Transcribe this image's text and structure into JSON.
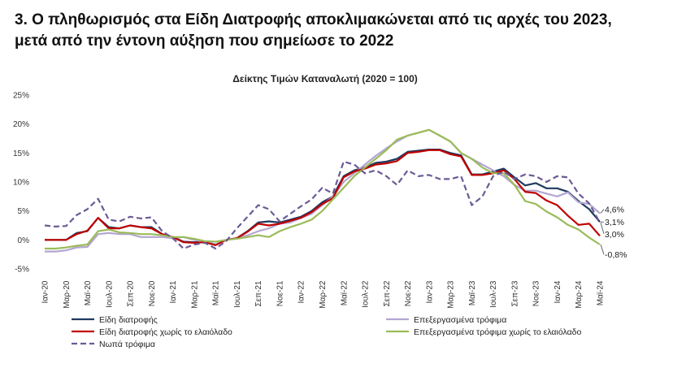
{
  "chart_data": {
    "type": "line",
    "title": "3. Ο πληθωρισμός στα Είδη Διατροφής αποκλιμακώνεται από τις αρχές του 2023,",
    "title_line2": "μετά από την έντονη αύξηση που σημείωσε το 2022",
    "subtitle": "Δείκτης Τιμών Καταναλωτή (2020 = 100)",
    "categories": [
      "Ιαν-20",
      null,
      "Μαρ-20",
      null,
      "Μαϊ-20",
      null,
      "Ιουλ-20",
      null,
      "Σεπ-20",
      null,
      "Νοε-20",
      null,
      "Ιαν-21",
      null,
      "Μαρ-21",
      null,
      "Μαϊ-21",
      null,
      "Ιουλ-21",
      null,
      "Σεπ-21",
      null,
      "Νοε-21",
      null,
      "Ιαν-22",
      null,
      "Μαρ-22",
      null,
      "Μαϊ-22",
      null,
      "Ιουλ-22",
      null,
      "Σεπ-22",
      null,
      "Νοε-22",
      null,
      "Ιαν-23",
      null,
      "Μαρ-23",
      null,
      "Μαϊ-23",
      null,
      "Ιουλ-23",
      null,
      "Σεπ-23",
      null,
      "Νοε-23",
      null,
      "Ιαν-24",
      null,
      "Μαρ-24",
      null,
      "Μαϊ-24"
    ],
    "ylim": [
      -5,
      25
    ],
    "yticks": [
      {
        "value": -5,
        "label": "-5%"
      },
      {
        "value": 0,
        "label": "0%"
      },
      {
        "value": 5,
        "label": "5%"
      },
      {
        "value": 10,
        "label": "10%"
      },
      {
        "value": 15,
        "label": "15%"
      },
      {
        "value": 20,
        "label": "20%"
      },
      {
        "value": 25,
        "label": "25%"
      }
    ],
    "grid": false,
    "series": [
      {
        "name": "Είδη διατροφής",
        "color": "#1f3a5f",
        "dash": false,
        "values": [
          0,
          0,
          0,
          1.2,
          1.5,
          3.8,
          2.2,
          2.0,
          2.5,
          2.2,
          2.2,
          1.0,
          0.5,
          -0.3,
          -0.4,
          -0.3,
          -0.8,
          0,
          0.3,
          1.5,
          3.0,
          3.2,
          3.0,
          3.5,
          4.0,
          5.0,
          6.5,
          7.5,
          11.0,
          12.0,
          12.5,
          13.3,
          13.5,
          14.0,
          15.2,
          15.4,
          15.6,
          15.6,
          15.0,
          14.6,
          11.3,
          11.3,
          11.8,
          12.3,
          10.8,
          9.4,
          9.8,
          8.9,
          8.9,
          8.3,
          6.7,
          5.3,
          3.1
        ],
        "value_labels": [
          null,
          null,
          null,
          null,
          null,
          null,
          null,
          null,
          null,
          null,
          null,
          null,
          null,
          null,
          null,
          null,
          null,
          null,
          null,
          null,
          null,
          null,
          null,
          null,
          null,
          null,
          null,
          null,
          null,
          null,
          null,
          null,
          null,
          null,
          null,
          null,
          null,
          null,
          null,
          null,
          null,
          null,
          null,
          null,
          null,
          null,
          null,
          null,
          null,
          null,
          null,
          null,
          "3,1%"
        ]
      },
      {
        "name": "Επεξεργασμένα τρόφιμα",
        "color": "#b3a6d0",
        "dash": false,
        "values": [
          -2.0,
          -2.0,
          -1.8,
          -1.3,
          -1.2,
          1.0,
          1.2,
          1.0,
          1.0,
          0.5,
          0.5,
          0.5,
          0.3,
          0.5,
          0,
          -0.3,
          -0.8,
          0,
          0.3,
          0.8,
          1.5,
          2.0,
          2.8,
          3.0,
          3.8,
          4.5,
          6.0,
          7.5,
          10.0,
          11.5,
          13.0,
          14.5,
          15.8,
          17.0,
          18.0,
          18.5,
          19.0,
          18.0,
          17.0,
          15.0,
          14.0,
          13.0,
          12.0,
          11.0,
          9.5,
          8.5,
          8.5,
          8.0,
          7.5,
          8.2,
          6.5,
          6.2,
          4.6
        ],
        "value_labels": [
          null,
          null,
          null,
          null,
          null,
          null,
          null,
          null,
          null,
          null,
          null,
          null,
          null,
          null,
          null,
          null,
          null,
          null,
          null,
          null,
          null,
          null,
          null,
          null,
          null,
          null,
          null,
          null,
          null,
          null,
          null,
          null,
          null,
          null,
          null,
          null,
          null,
          null,
          null,
          null,
          null,
          null,
          null,
          null,
          null,
          null,
          null,
          null,
          null,
          null,
          null,
          null,
          "4,6%"
        ]
      },
      {
        "name": "Είδη διατροφής χωρίς το ελαιόλαδο",
        "color": "#c00000",
        "dash": false,
        "values": [
          0,
          0,
          0,
          1.0,
          1.6,
          3.8,
          2.0,
          2.0,
          2.5,
          2.2,
          2.0,
          1.0,
          0.5,
          -0.4,
          -0.5,
          -0.4,
          -0.9,
          0,
          0.3,
          1.4,
          2.8,
          2.5,
          2.8,
          3.3,
          3.8,
          4.8,
          6.2,
          7.2,
          10.8,
          11.8,
          12.3,
          13.0,
          13.2,
          13.6,
          15.0,
          15.2,
          15.5,
          15.5,
          14.8,
          14.4,
          11.2,
          11.2,
          11.5,
          12.0,
          10.5,
          8.3,
          8.1,
          6.8,
          6.0,
          4.2,
          2.6,
          2.8,
          0.7
        ],
        "value_labels": [
          null,
          null,
          null,
          null,
          null,
          null,
          null,
          null,
          null,
          null,
          null,
          null,
          null,
          null,
          null,
          null,
          null,
          null,
          null,
          null,
          null,
          null,
          null,
          null,
          null,
          null,
          null,
          null,
          null,
          null,
          null,
          null,
          null,
          null,
          null,
          null,
          null,
          null,
          null,
          null,
          null,
          null,
          null,
          null,
          null,
          null,
          null,
          null,
          null,
          null,
          null,
          null,
          null
        ]
      },
      {
        "name": "Επεξεργασμένα τρόφιμα χωρίς το ελαιόλαδο",
        "color": "#9bbb59",
        "dash": false,
        "values": [
          -1.5,
          -1.5,
          -1.3,
          -1.0,
          -0.8,
          1.5,
          1.8,
          1.3,
          1.2,
          1.0,
          1.0,
          0.8,
          0.5,
          0.5,
          0.2,
          -0.2,
          -0.3,
          0,
          0.2,
          0.5,
          0.8,
          0.5,
          1.5,
          2.2,
          2.8,
          3.5,
          5.0,
          7.0,
          9.0,
          11.0,
          12.5,
          14.0,
          15.5,
          17.3,
          18.0,
          18.5,
          19.0,
          18.0,
          17.0,
          15.0,
          14.0,
          12.5,
          11.5,
          11.5,
          9.5,
          6.7,
          6.2,
          4.9,
          3.9,
          2.6,
          1.8,
          0.4,
          -0.8
        ],
        "value_labels": [
          null,
          null,
          null,
          null,
          null,
          null,
          null,
          null,
          null,
          null,
          null,
          null,
          null,
          null,
          null,
          null,
          null,
          null,
          null,
          null,
          null,
          null,
          null,
          null,
          null,
          null,
          null,
          null,
          null,
          null,
          null,
          null,
          null,
          null,
          null,
          null,
          null,
          null,
          null,
          null,
          null,
          null,
          null,
          null,
          null,
          null,
          null,
          null,
          null,
          null,
          null,
          null,
          "-0,8%"
        ]
      },
      {
        "name": "Νωπά τρόφιμα",
        "color": "#6b5b95",
        "dash": true,
        "values": [
          2.5,
          2.3,
          2.4,
          4.3,
          5.3,
          7.1,
          3.5,
          3.2,
          4.0,
          3.7,
          3.9,
          1.5,
          0.3,
          -1.5,
          -0.8,
          -0.5,
          -1.5,
          -0.2,
          2.0,
          4.0,
          6.0,
          5.3,
          3.2,
          4.5,
          5.8,
          7.0,
          9.0,
          8.0,
          13.5,
          13.0,
          11.5,
          12.0,
          11.0,
          9.5,
          12.0,
          11.0,
          11.2,
          10.5,
          10.5,
          11.0,
          6.0,
          7.5,
          11.0,
          11.8,
          10.5,
          11.3,
          11.0,
          10.0,
          11.0,
          10.8,
          8.0,
          6.3,
          3.0
        ],
        "value_labels": [
          null,
          null,
          null,
          null,
          null,
          null,
          null,
          null,
          null,
          null,
          null,
          null,
          null,
          null,
          null,
          null,
          null,
          null,
          null,
          null,
          null,
          null,
          null,
          null,
          null,
          null,
          null,
          null,
          null,
          null,
          null,
          null,
          null,
          null,
          null,
          null,
          null,
          null,
          null,
          null,
          null,
          null,
          null,
          null,
          null,
          null,
          null,
          null,
          null,
          null,
          null,
          null,
          "3,0%"
        ]
      }
    ]
  }
}
